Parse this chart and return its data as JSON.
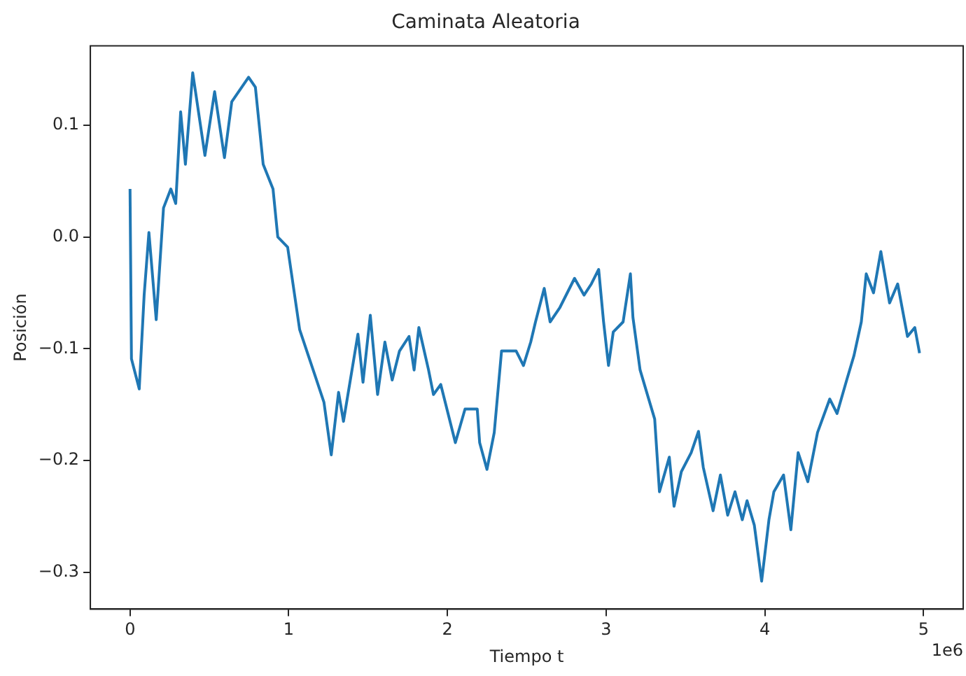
{
  "chart_data": {
    "type": "line",
    "title": "Caminata Aleatoria",
    "xlabel": "Tiempo t",
    "ylabel": "Posición",
    "annotations": [
      "1e6"
    ],
    "x": [
      0,
      0.009,
      0.058,
      0.089,
      0.119,
      0.165,
      0.211,
      0.257,
      0.288,
      0.319,
      0.349,
      0.395,
      0.472,
      0.533,
      0.595,
      0.641,
      0.747,
      0.79,
      0.839,
      0.901,
      0.931,
      0.993,
      1.069,
      1.161,
      1.222,
      1.268,
      1.314,
      1.345,
      1.436,
      1.468,
      1.514,
      1.56,
      1.606,
      1.652,
      1.698,
      1.758,
      1.79,
      1.82,
      1.881,
      1.912,
      1.958,
      2.004,
      2.05,
      2.111,
      2.188,
      2.203,
      2.249,
      2.295,
      2.341,
      2.433,
      2.479,
      2.525,
      2.555,
      2.61,
      2.647,
      2.709,
      2.801,
      2.861,
      2.907,
      2.953,
      2.984,
      3.015,
      3.045,
      3.107,
      3.153,
      3.169,
      3.214,
      3.26,
      3.306,
      3.336,
      3.398,
      3.428,
      3.474,
      3.536,
      3.582,
      3.612,
      3.674,
      3.72,
      3.766,
      3.812,
      3.858,
      3.888,
      3.934,
      3.98,
      4.026,
      4.057,
      4.118,
      4.164,
      4.21,
      4.271,
      4.332,
      4.409,
      4.455,
      4.516,
      4.562,
      4.608,
      4.639,
      4.685,
      4.731,
      4.786,
      4.837,
      4.899,
      4.945,
      4.975
    ],
    "series": [
      {
        "color": "#1f77b4",
        "values": [
          0.043,
          -0.109,
          -0.136,
          -0.052,
          0.004,
          -0.074,
          0.026,
          0.043,
          0.03,
          0.112,
          0.065,
          0.147,
          0.073,
          0.13,
          0.071,
          0.121,
          0.143,
          0.134,
          0.065,
          0.043,
          0,
          -0.009,
          -0.083,
          -0.122,
          -0.148,
          -0.195,
          -0.139,
          -0.165,
          -0.087,
          -0.13,
          -0.07,
          -0.141,
          -0.094,
          -0.128,
          -0.102,
          -0.089,
          -0.119,
          -0.081,
          -0.119,
          -0.141,
          -0.132,
          -0.158,
          -0.184,
          -0.154,
          -0.154,
          -0.184,
          -0.208,
          -0.175,
          -0.102,
          -0.102,
          -0.115,
          -0.094,
          -0.076,
          -0.046,
          -0.076,
          -0.063,
          -0.037,
          -0.052,
          -0.042,
          -0.029,
          -0.076,
          -0.115,
          -0.085,
          -0.076,
          -0.033,
          -0.072,
          -0.119,
          -0.141,
          -0.163,
          -0.228,
          -0.197,
          -0.241,
          -0.21,
          -0.193,
          -0.174,
          -0.206,
          -0.245,
          -0.213,
          -0.249,
          -0.228,
          -0.253,
          -0.236,
          -0.258,
          -0.308,
          -0.253,
          -0.228,
          -0.213,
          -0.262,
          -0.193,
          -0.219,
          -0.175,
          -0.145,
          -0.158,
          -0.128,
          -0.106,
          -0.076,
          -0.033,
          -0.05,
          -0.013,
          -0.059,
          -0.042,
          -0.089,
          -0.081,
          -0.104
        ]
      }
    ],
    "xlim": [
      -0.25,
      5.25
    ],
    "ylim": [
      -0.333,
      0.171
    ],
    "xticks": [
      0,
      1,
      2,
      3,
      4,
      5
    ],
    "yticks": [
      {
        "value": -0.3,
        "label": "−0.3"
      },
      {
        "value": -0.2,
        "label": "−0.2"
      },
      {
        "value": -0.1,
        "label": "−0.1"
      },
      {
        "value": 0,
        "label": "0.0"
      },
      {
        "value": 0.1,
        "label": "0.1"
      }
    ],
    "grid": false,
    "legend": false,
    "marker": "none",
    "line_style": "solid"
  }
}
